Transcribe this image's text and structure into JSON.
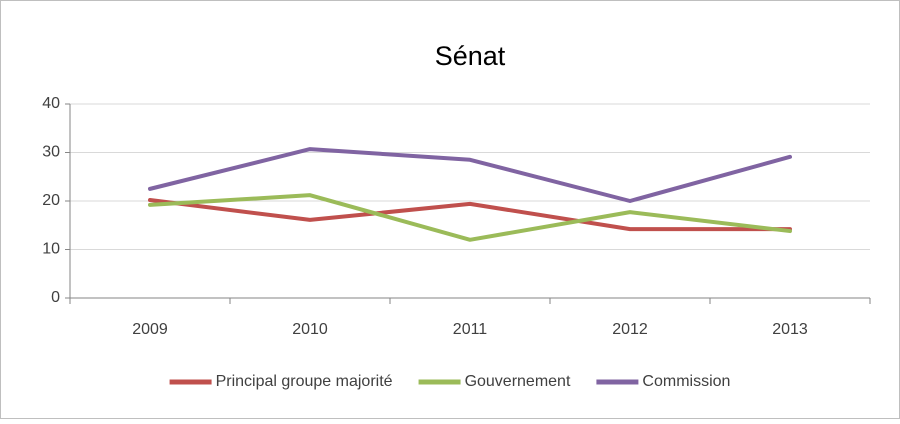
{
  "chart_data": {
    "type": "line",
    "title": "Sénat",
    "categories": [
      "2009",
      "2010",
      "2011",
      "2012",
      "2013"
    ],
    "series": [
      {
        "name": "Principal groupe majorité",
        "color": "#c0504d",
        "values": [
          20.2,
          16.1,
          19.4,
          14.2,
          14.2
        ]
      },
      {
        "name": "Gouvernement",
        "color": "#9bbb59",
        "values": [
          19.2,
          21.2,
          12,
          17.7,
          13.8
        ]
      },
      {
        "name": "Commission",
        "color": "#8064a2",
        "values": [
          22.5,
          30.7,
          28.5,
          20,
          29.1
        ]
      }
    ],
    "ylim": [
      0,
      40
    ],
    "yticks": [
      0,
      10,
      20,
      30,
      40
    ],
    "grid": true,
    "legend": "bottom"
  }
}
